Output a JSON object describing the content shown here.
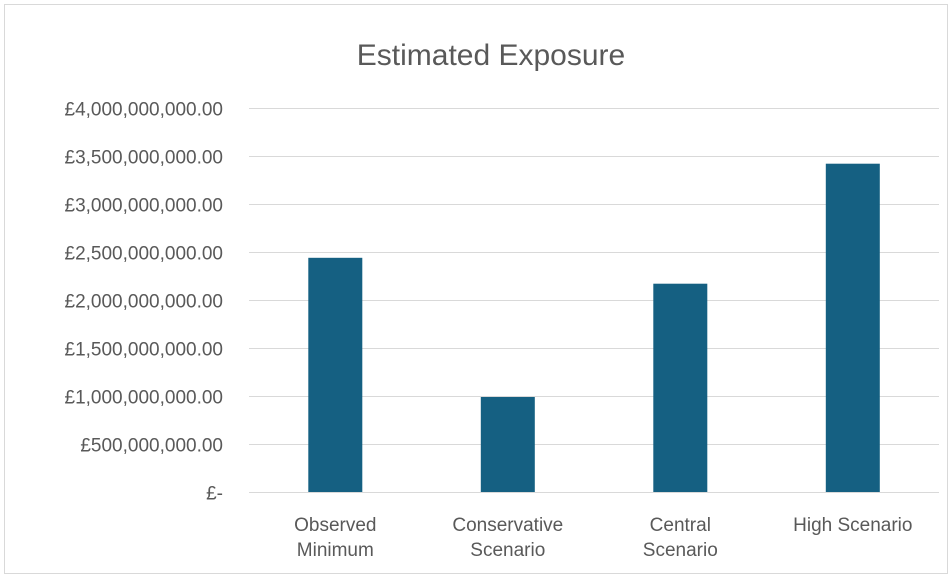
{
  "chart_data": {
    "type": "bar",
    "title": "Estimated Exposure",
    "xlabel": "",
    "ylabel": "",
    "categories": [
      [
        "Observed",
        "Minimum"
      ],
      [
        "Conservative",
        "Scenario"
      ],
      [
        "Central",
        "Scenario"
      ],
      [
        "High Scenario"
      ]
    ],
    "values": [
      2440000000,
      990000000,
      2170000000,
      3420000000
    ],
    "ylim": [
      0,
      4000000000
    ],
    "yticks": [
      0,
      500000000,
      1000000000,
      1500000000,
      2000000000,
      2500000000,
      3000000000,
      3500000000,
      4000000000
    ],
    "ytick_labels": [
      "£-",
      "£500,000,000.00",
      "£1,000,000,000.00",
      "£1,500,000,000.00",
      "£2,000,000,000.00",
      "£2,500,000,000.00",
      "£3,000,000,000.00",
      "£3,500,000,000.00",
      "£4,000,000,000.00"
    ],
    "grid": true,
    "legend": "none",
    "bar_color": "#156082"
  }
}
